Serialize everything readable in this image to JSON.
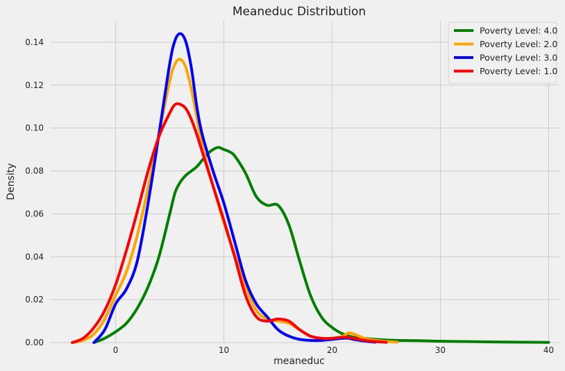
{
  "chart_data": {
    "type": "line",
    "title": "Meaneduc Distribution",
    "xlabel": "meaneduc",
    "ylabel": "Density",
    "xlim": [
      -6,
      41
    ],
    "ylim": [
      0,
      0.15
    ],
    "xticks": [
      0,
      10,
      20,
      30,
      40
    ],
    "yticks": [
      0.0,
      0.02,
      0.04,
      0.06,
      0.08,
      0.1,
      0.12,
      0.14
    ],
    "ytick_labels": [
      "0.00",
      "0.02",
      "0.04",
      "0.06",
      "0.08",
      "0.10",
      "0.12",
      "0.14"
    ],
    "grid": true,
    "legend_position": "top-right",
    "series": [
      {
        "name": "Poverty Level: 4.0",
        "color": "#008000",
        "x": [
          -2,
          -1,
          0,
          1,
          2,
          3,
          4,
          5,
          5.5,
          6,
          6.5,
          7,
          7.5,
          8,
          8.5,
          9,
          9.5,
          10,
          10.5,
          11,
          12,
          13,
          14,
          15,
          16,
          17,
          18,
          19,
          20,
          21,
          22,
          23,
          24,
          26,
          28,
          30,
          35,
          40
        ],
        "y": [
          0.0,
          0.002,
          0.005,
          0.009,
          0.016,
          0.026,
          0.04,
          0.06,
          0.07,
          0.075,
          0.078,
          0.08,
          0.082,
          0.085,
          0.088,
          0.09,
          0.091,
          0.09,
          0.089,
          0.087,
          0.079,
          0.068,
          0.064,
          0.064,
          0.055,
          0.038,
          0.022,
          0.012,
          0.007,
          0.004,
          0.0025,
          0.002,
          0.0015,
          0.001,
          0.0009,
          0.0006,
          0.0003,
          0.0001
        ]
      },
      {
        "name": "Poverty Level: 2.0",
        "color": "#ffa500",
        "x": [
          -4,
          -3,
          -2,
          -1,
          0,
          1,
          2,
          3,
          4,
          5,
          5.5,
          6,
          6.5,
          7,
          7.5,
          8,
          9,
          10,
          11,
          12,
          13,
          14,
          15,
          16,
          17,
          18,
          19,
          20,
          21,
          21.5,
          22,
          23,
          24,
          25,
          26
        ],
        "y": [
          0.0,
          0.001,
          0.004,
          0.011,
          0.022,
          0.033,
          0.05,
          0.072,
          0.097,
          0.122,
          0.13,
          0.132,
          0.128,
          0.118,
          0.105,
          0.092,
          0.073,
          0.056,
          0.041,
          0.026,
          0.015,
          0.011,
          0.01,
          0.009,
          0.006,
          0.003,
          0.002,
          0.002,
          0.003,
          0.0045,
          0.004,
          0.002,
          0.001,
          0.0005,
          0.0002
        ]
      },
      {
        "name": "Poverty Level: 3.0",
        "color": "#0000ff",
        "x": [
          -2,
          -1,
          0,
          1,
          2,
          3,
          4,
          5,
          5.5,
          6,
          6.5,
          7,
          7.5,
          8,
          9,
          10,
          11,
          12,
          13,
          14,
          15,
          16,
          17,
          18,
          19,
          20,
          21,
          21.5,
          22,
          23,
          24
        ],
        "y": [
          0.0,
          0.006,
          0.018,
          0.025,
          0.038,
          0.065,
          0.097,
          0.13,
          0.141,
          0.144,
          0.14,
          0.128,
          0.11,
          0.097,
          0.08,
          0.065,
          0.047,
          0.029,
          0.018,
          0.012,
          0.006,
          0.003,
          0.0015,
          0.001,
          0.001,
          0.0015,
          0.002,
          0.002,
          0.0015,
          0.0007,
          0.0002
        ]
      },
      {
        "name": "Poverty Level: 1.0",
        "color": "#ff0000",
        "x": [
          -4,
          -3,
          -2,
          -1,
          0,
          1,
          2,
          3,
          4,
          5,
          5.5,
          6,
          6.5,
          7,
          7.5,
          8,
          9,
          10,
          11,
          12,
          13,
          14,
          15,
          16,
          17,
          18,
          19,
          20,
          21,
          22,
          23,
          24,
          25
        ],
        "y": [
          0.0,
          0.002,
          0.007,
          0.015,
          0.027,
          0.043,
          0.061,
          0.08,
          0.096,
          0.107,
          0.111,
          0.111,
          0.109,
          0.104,
          0.097,
          0.089,
          0.073,
          0.057,
          0.04,
          0.022,
          0.012,
          0.01,
          0.011,
          0.01,
          0.006,
          0.003,
          0.002,
          0.002,
          0.0025,
          0.002,
          0.001,
          0.0005,
          0.0001
        ]
      }
    ]
  }
}
